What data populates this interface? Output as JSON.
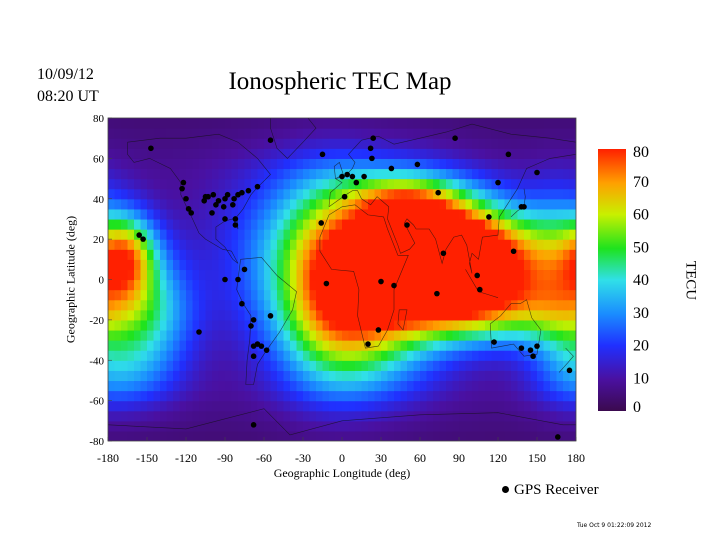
{
  "header": {
    "date": "10/09/12",
    "time": "08:20 UT"
  },
  "footer": {
    "timestamp": "Tue Oct 9 01:22:09 2012"
  },
  "chart_data": {
    "type": "heatmap",
    "title": "Ionospheric TEC Map",
    "xlabel": "Geographic Longitude (deg)",
    "ylabel": "Geographic Latitude (deg)",
    "xlim": [
      -180,
      180
    ],
    "ylim": [
      -80,
      80
    ],
    "x_ticks": [
      "-180",
      "-150",
      "-120",
      "-90",
      "-60",
      "-30",
      "0",
      "30",
      "60",
      "90",
      "120",
      "150",
      "180"
    ],
    "y_ticks": [
      "80",
      "60",
      "40",
      "20",
      "0",
      "-20",
      "-40",
      "-60",
      "-80"
    ],
    "colorbar": {
      "label": "TECU",
      "range": [
        0,
        80
      ],
      "ticks": [
        "0",
        "10",
        "20",
        "30",
        "40",
        "50",
        "60",
        "70",
        "80"
      ]
    },
    "legend": {
      "label": "GPS Receiver",
      "placement": "bottom-right"
    },
    "field_features": [
      {
        "lon": 75,
        "lat": 10,
        "tec": 70,
        "sigma_lon": 35,
        "sigma_lat": 18
      },
      {
        "lon": 115,
        "lat": 10,
        "tec": 55,
        "sigma_lon": 45,
        "sigma_lat": 18
      },
      {
        "lon": 40,
        "lat": 18,
        "tec": 48,
        "sigma_lon": 40,
        "sigma_lat": 25
      },
      {
        "lon": 20,
        "lat": -20,
        "tec": 40,
        "sigma_lon": 40,
        "sigma_lat": 25
      },
      {
        "lon": -10,
        "lat": 0,
        "tec": 38,
        "sigma_lon": 30,
        "sigma_lat": 35
      },
      {
        "lon": 50,
        "lat": 40,
        "tec": 28,
        "sigma_lon": 30,
        "sigma_lat": 8
      },
      {
        "lon": 120,
        "lat": -15,
        "tec": 35,
        "sigma_lon": 50,
        "sigma_lat": 12
      },
      {
        "lon": -165,
        "lat": 12,
        "tec": 45,
        "sigma_lon": 16,
        "sigma_lat": 14
      },
      {
        "lon": -150,
        "lat": -15,
        "tec": 30,
        "sigma_lon": 25,
        "sigma_lat": 20
      },
      {
        "lon": -170,
        "lat": -45,
        "tec": 20,
        "sigma_lon": 30,
        "sigma_lat": 15
      },
      {
        "lon": -45,
        "lat": 15,
        "tec": 18,
        "sigma_lon": 40,
        "sigma_lat": 30
      },
      {
        "lon": 170,
        "lat": 0,
        "tec": 25,
        "sigma_lon": 20,
        "sigma_lat": 30
      }
    ],
    "background_tec": 8,
    "receivers": [
      [
        -147,
        65
      ],
      [
        -122,
        48
      ],
      [
        -123,
        45
      ],
      [
        -120,
        40
      ],
      [
        -118,
        35
      ],
      [
        -116,
        33
      ],
      [
        -106,
        39
      ],
      [
        -97,
        37
      ],
      [
        -95,
        39
      ],
      [
        -90,
        40
      ],
      [
        -88,
        42
      ],
      [
        -83,
        40
      ],
      [
        -80,
        42
      ],
      [
        -77,
        43
      ],
      [
        -72,
        44
      ],
      [
        -65,
        46
      ],
      [
        -55,
        69
      ],
      [
        -84,
        37
      ],
      [
        -82,
        30
      ],
      [
        -82,
        27
      ],
      [
        -91,
        36
      ],
      [
        -103,
        41
      ],
      [
        -105,
        41
      ],
      [
        -100,
        33
      ],
      [
        -90,
        30
      ],
      [
        -99,
        42
      ],
      [
        -156,
        22
      ],
      [
        -153,
        20
      ],
      [
        -110,
        -26
      ],
      [
        -90,
        0
      ],
      [
        -80,
        0
      ],
      [
        -75,
        5
      ],
      [
        -77,
        -12
      ],
      [
        -70,
        -23
      ],
      [
        -65,
        -32
      ],
      [
        -68,
        -20
      ],
      [
        -55,
        -18
      ],
      [
        -58,
        -35
      ],
      [
        -62,
        -33
      ],
      [
        -68,
        -33
      ],
      [
        -68,
        -38
      ],
      [
        0,
        51
      ],
      [
        4,
        52
      ],
      [
        8,
        51
      ],
      [
        11,
        48
      ],
      [
        17,
        51
      ],
      [
        2,
        41
      ],
      [
        -16,
        28
      ],
      [
        -15,
        62
      ],
      [
        22,
        65
      ],
      [
        24,
        70
      ],
      [
        23,
        60
      ],
      [
        38,
        55
      ],
      [
        58,
        57
      ],
      [
        74,
        43
      ],
      [
        87,
        70
      ],
      [
        50,
        27
      ],
      [
        78,
        13
      ],
      [
        73,
        -7
      ],
      [
        -12,
        -2
      ],
      [
        30,
        -1
      ],
      [
        40,
        -3
      ],
      [
        28,
        -25
      ],
      [
        20,
        -32
      ],
      [
        104,
        2
      ],
      [
        106,
        -5
      ],
      [
        113,
        31
      ],
      [
        120,
        48
      ],
      [
        128,
        62
      ],
      [
        140,
        36
      ],
      [
        138,
        36
      ],
      [
        132,
        14
      ],
      [
        150,
        53
      ],
      [
        117,
        -31
      ],
      [
        138,
        -34
      ],
      [
        147,
        -38
      ],
      [
        145,
        -35
      ],
      [
        150,
        -33
      ],
      [
        175,
        -45
      ],
      [
        166,
        -78
      ],
      [
        -68,
        -72
      ]
    ]
  }
}
